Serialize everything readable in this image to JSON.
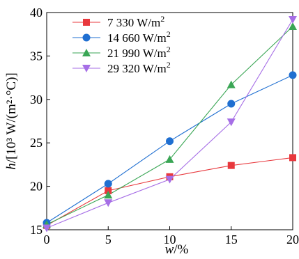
{
  "chart_data": {
    "type": "line",
    "xlabel_var": "w",
    "xlabel_unit": "/%",
    "ylabel_var": "h",
    "ylabel_unit": "/[10³ W/(m²·°C)]",
    "xlim": [
      0,
      20
    ],
    "ylim": [
      15,
      40
    ],
    "xticks": [
      0,
      5,
      10,
      15,
      20
    ],
    "yticks": [
      15,
      20,
      25,
      30,
      35,
      40
    ],
    "grid": false,
    "legend_position": "top-left",
    "x": [
      0,
      5,
      10,
      15,
      20
    ],
    "series": [
      {
        "name": "7 330 W/m",
        "name_sup": "2",
        "color": "#e8383d",
        "marker": "square",
        "values": [
          15.5,
          19.5,
          21.1,
          22.4,
          23.3
        ]
      },
      {
        "name": "14 660 W/m",
        "name_sup": "2",
        "color": "#1f6fd1",
        "marker": "circle",
        "values": [
          15.8,
          20.3,
          25.2,
          29.5,
          32.8
        ]
      },
      {
        "name": "21 990 W/m",
        "name_sup": "2",
        "color": "#3aa655",
        "marker": "triangle-up",
        "values": [
          15.6,
          19.0,
          23.1,
          31.7,
          38.4
        ]
      },
      {
        "name": "29 320 W/m",
        "name_sup": "2",
        "color": "#a66ee6",
        "marker": "triangle-down",
        "values": [
          15.2,
          18.1,
          20.8,
          27.4,
          39.2
        ]
      }
    ]
  }
}
